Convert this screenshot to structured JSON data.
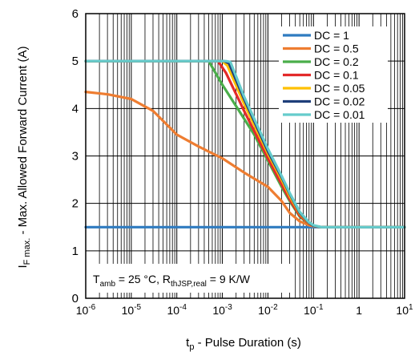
{
  "chart_data": {
    "type": "line",
    "xscale": "log",
    "xlim": [
      1e-06,
      10
    ],
    "ylim": [
      0,
      6
    ],
    "grid": "on",
    "legend_position": "top-right",
    "xlabel": {
      "base": "t",
      "sub": "p",
      "rest": " - Pulse Duration (s)"
    },
    "ylabel": {
      "base": "I",
      "sub": "F max.",
      "rest": " - Max. Allowed Forward Current (A)"
    },
    "annotation": {
      "t1": "T",
      "s1": "amb",
      "t2": " = 25 °C, R",
      "s2": "thJSP,real",
      "t3": " = 9 K/W"
    },
    "x_ticks": [
      {
        "value": 1e-06,
        "base": "10",
        "exp": "-6"
      },
      {
        "value": 1e-05,
        "base": "10",
        "exp": "-5"
      },
      {
        "value": 0.0001,
        "base": "10",
        "exp": "-4"
      },
      {
        "value": 0.001,
        "base": "10",
        "exp": "-3"
      },
      {
        "value": 0.01,
        "base": "10",
        "exp": "-2"
      },
      {
        "value": 0.1,
        "base": "10",
        "exp": "-1"
      },
      {
        "value": 1,
        "base": "1",
        "exp": ""
      },
      {
        "value": 10,
        "base": "10",
        "exp": "1"
      }
    ],
    "y_ticks": [
      0,
      1,
      2,
      3,
      4,
      5,
      6
    ],
    "series": [
      {
        "name": "DC = 1",
        "color": "#2f7bc0",
        "x": [
          1e-06,
          10
        ],
        "y": [
          1.5,
          1.5
        ]
      },
      {
        "name": "DC = 0.5",
        "color": "#ee7d31",
        "x": [
          1e-06,
          3e-06,
          1e-05,
          3e-05,
          0.0001,
          0.0003,
          0.001,
          0.003,
          0.01,
          0.02,
          0.03,
          0.05,
          0.08,
          0.1,
          0.15,
          10
        ],
        "y": [
          4.35,
          4.3,
          4.2,
          3.95,
          3.45,
          3.2,
          2.95,
          2.65,
          2.35,
          2.05,
          1.8,
          1.62,
          1.54,
          1.52,
          1.5,
          1.5
        ]
      },
      {
        "name": "DC = 0.2",
        "color": "#4aae4a",
        "x": [
          1e-06,
          0.0005,
          0.001,
          0.002,
          0.005,
          0.01,
          0.02,
          0.03,
          0.05,
          0.08,
          0.1,
          0.15,
          10
        ],
        "y": [
          5.0,
          5.0,
          4.5,
          4.05,
          3.45,
          2.9,
          2.35,
          2.05,
          1.72,
          1.57,
          1.53,
          1.5,
          1.5
        ]
      },
      {
        "name": "DC = 0.1",
        "color": "#e32a2a",
        "x": [
          1e-06,
          0.0008,
          0.0012,
          0.003,
          0.01,
          0.02,
          0.03,
          0.05,
          0.08,
          0.1,
          0.15,
          10
        ],
        "y": [
          5.0,
          5.0,
          4.75,
          3.95,
          2.95,
          2.4,
          2.08,
          1.74,
          1.57,
          1.53,
          1.5,
          1.5
        ]
      },
      {
        "name": "DC = 0.05",
        "color": "#ffc000",
        "x": [
          1e-06,
          0.001,
          0.0013,
          0.003,
          0.01,
          0.02,
          0.03,
          0.05,
          0.08,
          0.1,
          0.15,
          10
        ],
        "y": [
          5.0,
          5.0,
          4.9,
          4.1,
          3.05,
          2.5,
          2.15,
          1.78,
          1.58,
          1.53,
          1.5,
          1.5
        ]
      },
      {
        "name": "DC = 0.02",
        "color": "#1f3f7a",
        "x": [
          1e-06,
          0.0011,
          0.0014,
          0.003,
          0.01,
          0.02,
          0.03,
          0.05,
          0.08,
          0.1,
          0.15,
          10
        ],
        "y": [
          5.0,
          5.0,
          4.95,
          4.2,
          3.1,
          2.55,
          2.2,
          1.8,
          1.59,
          1.53,
          1.5,
          1.5
        ]
      },
      {
        "name": "DC = 0.01",
        "color": "#66cccc",
        "x": [
          1e-06,
          0.0012,
          0.0015,
          0.003,
          0.01,
          0.02,
          0.03,
          0.05,
          0.08,
          0.1,
          0.15,
          10
        ],
        "y": [
          5.0,
          5.0,
          4.98,
          4.25,
          3.15,
          2.58,
          2.22,
          1.82,
          1.6,
          1.54,
          1.5,
          1.5
        ]
      }
    ]
  }
}
